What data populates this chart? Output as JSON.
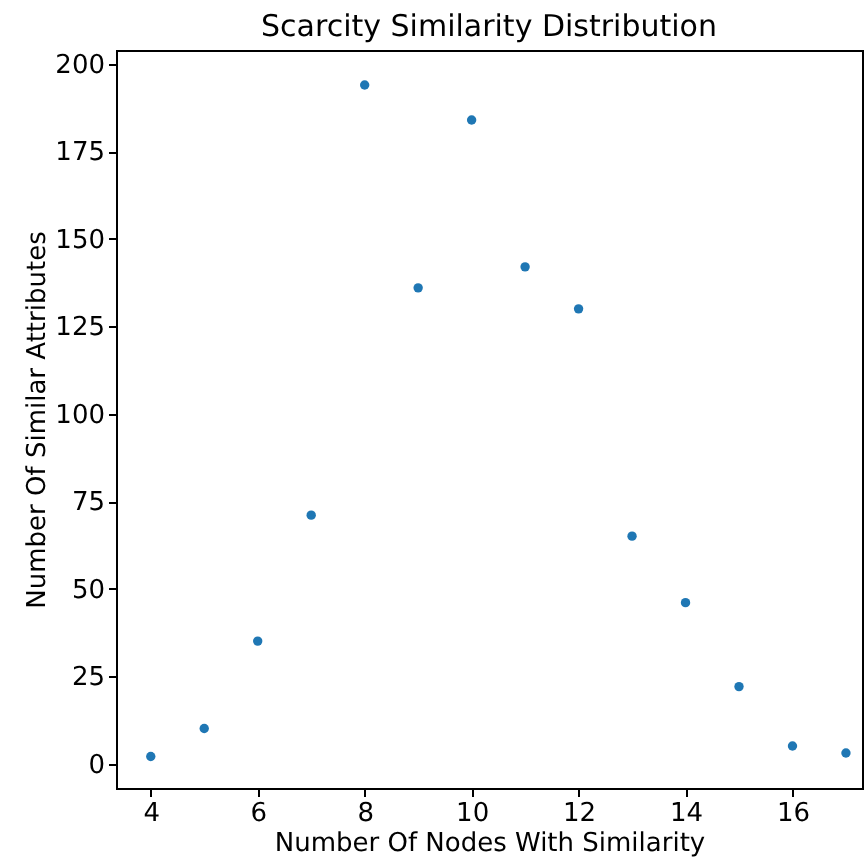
{
  "chart_data": {
    "type": "scatter",
    "title": "Scarcity Similarity Distribution",
    "xlabel": "Number Of Nodes With Similarity",
    "ylabel": "Number Of Similar Attributes",
    "x": [
      4,
      5,
      6,
      7,
      8,
      9,
      10,
      11,
      12,
      13,
      14,
      15,
      16,
      17
    ],
    "series": [
      {
        "color": "#1f77b4",
        "values": [
          2,
          10,
          35,
          71,
          194,
          136,
          184,
          142,
          130,
          65,
          46,
          22,
          5,
          3
        ]
      }
    ],
    "xlim": [
      3.35,
      17.3
    ],
    "xticks": [
      4,
      6,
      8,
      10,
      12,
      14,
      16
    ],
    "ylim": [
      -7,
      204
    ],
    "yticks": [
      0,
      25,
      50,
      75,
      100,
      125,
      150,
      175,
      200
    ],
    "marker": "circle",
    "grid": false
  }
}
